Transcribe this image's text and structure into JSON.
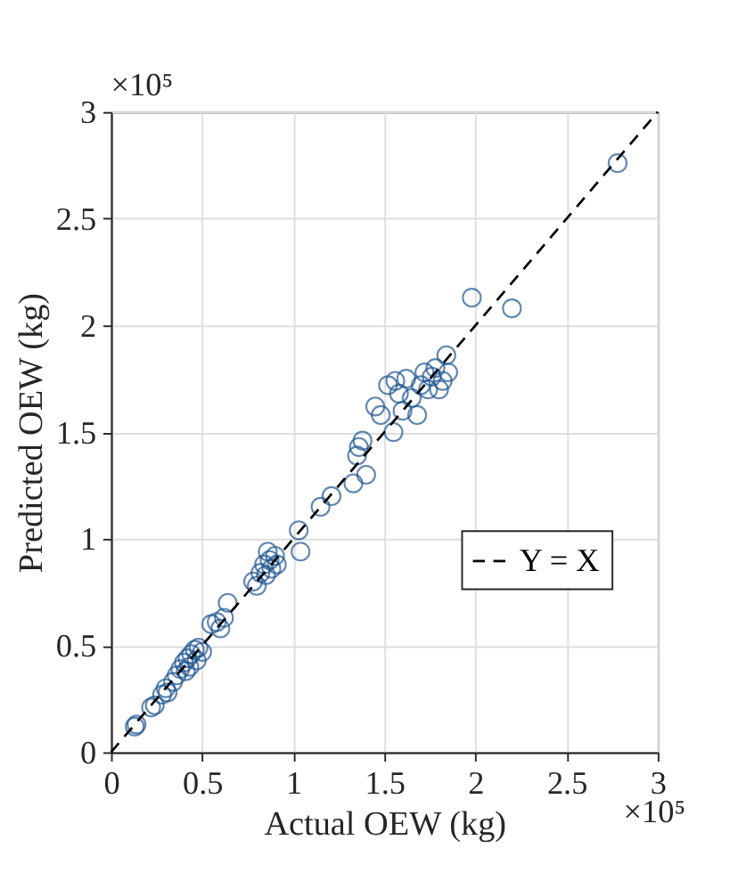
{
  "chart_data": {
    "type": "scatter",
    "xlabel": "Actual OEW (kg)",
    "ylabel": "Predicted OEW (kg)",
    "annotations": [
      "×10⁵",
      "×10⁵"
    ],
    "xlim": [
      0,
      3
    ],
    "ylim": [
      0,
      3
    ],
    "xticks": [
      0,
      0.5,
      1,
      1.5,
      2,
      2.5,
      3
    ],
    "yticks": [
      0,
      0.5,
      1,
      1.5,
      2,
      2.5,
      3
    ],
    "grid": true,
    "legend": "right",
    "marker": "circle",
    "series": [
      {
        "color": "#1f5591",
        "x": [
          0.13,
          0.14,
          0.22,
          0.24,
          0.28,
          0.3,
          0.31,
          0.34,
          0.36,
          0.38,
          0.4,
          0.41,
          0.42,
          0.43,
          0.44,
          0.46,
          0.47,
          0.48,
          0.5,
          0.55,
          0.58,
          0.6,
          0.62,
          0.64,
          0.78,
          0.8,
          0.82,
          0.84,
          0.85,
          0.86,
          0.87,
          0.88,
          0.9,
          0.91,
          1.03,
          1.04,
          1.15,
          1.21,
          1.33,
          1.35,
          1.36,
          1.38,
          1.4,
          1.45,
          1.48,
          1.52,
          1.55,
          1.56,
          1.58,
          1.6,
          1.62,
          1.65,
          1.68,
          1.7,
          1.72,
          1.74,
          1.76,
          1.78,
          1.8,
          1.82,
          1.84,
          1.85,
          1.98,
          2.2,
          2.78
        ],
        "values": [
          0.12,
          0.13,
          0.21,
          0.22,
          0.27,
          0.3,
          0.28,
          0.33,
          0.36,
          0.39,
          0.42,
          0.38,
          0.44,
          0.4,
          0.46,
          0.48,
          0.43,
          0.49,
          0.47,
          0.6,
          0.61,
          0.58,
          0.63,
          0.7,
          0.8,
          0.78,
          0.84,
          0.88,
          0.83,
          0.94,
          0.9,
          0.86,
          0.92,
          0.88,
          1.04,
          0.94,
          1.15,
          1.2,
          1.26,
          1.39,
          1.43,
          1.46,
          1.3,
          1.62,
          1.58,
          1.72,
          1.5,
          1.74,
          1.68,
          1.6,
          1.75,
          1.66,
          1.58,
          1.72,
          1.78,
          1.7,
          1.76,
          1.8,
          1.7,
          1.74,
          1.86,
          1.78,
          2.13,
          2.08,
          2.76
        ]
      },
      {
        "type": "line",
        "name": "Y = X",
        "color": "#000000",
        "line_style": "dashed",
        "marker": "none",
        "x": [
          0,
          3
        ],
        "values": [
          0,
          3
        ]
      }
    ]
  }
}
